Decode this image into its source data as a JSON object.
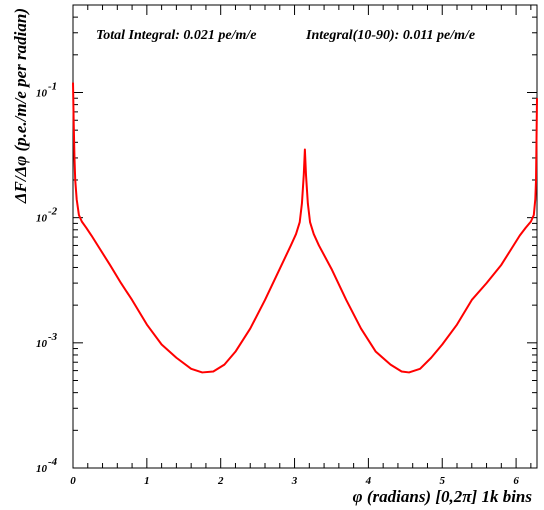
{
  "chart_data": {
    "type": "line",
    "title": "",
    "annotations": [
      "Total Integral: 0.021 pe/m/e",
      "Integral(10-90): 0.011 pe/m/e"
    ],
    "xlabel": "φ (radians) [0,2π] 1k bins",
    "ylabel": "ΔF/Δφ (p.e./m/e per radian)",
    "xlim": [
      0,
      6.2832
    ],
    "ylim": [
      0.0001,
      0.5
    ],
    "y_scale": "log",
    "x_ticks": [
      {
        "value": 0,
        "label": "0"
      },
      {
        "value": 1,
        "label": "1"
      },
      {
        "value": 2,
        "label": "2"
      },
      {
        "value": 3,
        "label": "3"
      },
      {
        "value": 4,
        "label": "4"
      },
      {
        "value": 5,
        "label": "5"
      },
      {
        "value": 6,
        "label": "6"
      }
    ],
    "y_ticks": [
      {
        "value": 0.0001,
        "base": "10",
        "exp": "-4"
      },
      {
        "value": 0.001,
        "base": "10",
        "exp": "-3"
      },
      {
        "value": 0.01,
        "base": "10",
        "exp": "-2"
      },
      {
        "value": 0.1,
        "base": "10",
        "exp": "-1"
      }
    ],
    "grid": false,
    "series": [
      {
        "color": "#ff0000",
        "x": [
          0.0,
          0.01,
          0.02,
          0.03,
          0.05,
          0.08,
          0.12,
          0.18,
          0.25,
          0.35,
          0.5,
          0.65,
          0.8,
          1.0,
          1.2,
          1.4,
          1.6,
          1.75,
          1.9,
          2.05,
          2.2,
          2.4,
          2.6,
          2.8,
          2.95,
          3.02,
          3.07,
          3.1,
          3.125,
          3.14,
          3.155,
          3.18,
          3.21,
          3.26,
          3.33,
          3.5,
          3.7,
          3.9,
          4.1,
          4.3,
          4.45,
          4.55,
          4.7,
          4.85,
          5.0,
          5.2,
          5.4,
          5.6,
          5.8,
          5.95,
          6.05,
          6.13,
          6.2,
          6.24,
          6.26,
          6.27,
          6.2832
        ],
        "y": [
          0.12,
          0.055,
          0.03,
          0.02,
          0.014,
          0.0105,
          0.0093,
          0.0083,
          0.0072,
          0.0058,
          0.0042,
          0.003,
          0.0022,
          0.0014,
          0.00097,
          0.00076,
          0.00062,
          0.00058,
          0.00059,
          0.00067,
          0.00085,
          0.0013,
          0.0022,
          0.0039,
          0.006,
          0.0074,
          0.0092,
          0.013,
          0.022,
          0.035,
          0.022,
          0.013,
          0.0092,
          0.0074,
          0.006,
          0.0039,
          0.0022,
          0.0013,
          0.00085,
          0.00067,
          0.00059,
          0.00058,
          0.00062,
          0.00076,
          0.00097,
          0.0014,
          0.0022,
          0.003,
          0.0042,
          0.0058,
          0.0072,
          0.0083,
          0.0093,
          0.0105,
          0.014,
          0.02,
          0.09
        ]
      }
    ]
  }
}
